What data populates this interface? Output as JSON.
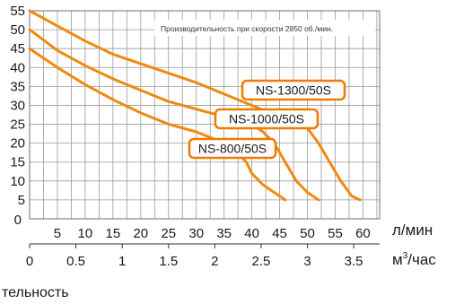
{
  "chart_data": {
    "type": "line",
    "annotation": "Производительность при скорости 2850 об./мин.",
    "y_ticks": [
      "5",
      "10",
      "15",
      "20",
      "25",
      "30",
      "35",
      "40",
      "45",
      "50",
      "55"
    ],
    "x_ticks": [
      "5",
      "10",
      "15",
      "20",
      "25",
      "30",
      "35",
      "40",
      "45",
      "50",
      "55",
      "60"
    ],
    "x2_ticks": [
      "0",
      "0.5",
      "1",
      "1.5",
      "2",
      "2.5",
      "3",
      "3.5"
    ],
    "x_unit": "л/мин",
    "x2_unit_base": "м",
    "x2_unit_sup": "3",
    "x2_unit_rest": "/час",
    "y_zero_label": "0",
    "ylim": [
      0,
      55
    ],
    "xlim": [
      0,
      63
    ],
    "grid": true,
    "colors": {
      "curve": "#ef8a10",
      "label_border": "#ef7a00",
      "grid": "#9a9a9a"
    },
    "series": [
      {
        "name": "NS-1300/50S",
        "points": [
          [
            0,
            55
          ],
          [
            5,
            51
          ],
          [
            10,
            47
          ],
          [
            15,
            43.5
          ],
          [
            20,
            41
          ],
          [
            25,
            38.5
          ],
          [
            30,
            36
          ],
          [
            35,
            33
          ],
          [
            40,
            30
          ],
          [
            45,
            27
          ],
          [
            50,
            24
          ],
          [
            52,
            20
          ],
          [
            54,
            15
          ],
          [
            56,
            10
          ],
          [
            58,
            6
          ],
          [
            59.5,
            5
          ]
        ]
      },
      {
        "name": "NS-1000/50S",
        "points": [
          [
            0,
            50
          ],
          [
            5,
            44.5
          ],
          [
            10,
            40.5
          ],
          [
            15,
            37
          ],
          [
            20,
            34
          ],
          [
            25,
            31
          ],
          [
            30,
            29
          ],
          [
            35,
            27
          ],
          [
            40,
            25
          ],
          [
            42,
            23
          ],
          [
            44,
            20
          ],
          [
            46,
            15
          ],
          [
            48,
            10
          ],
          [
            50,
            7
          ],
          [
            52,
            5
          ]
        ]
      },
      {
        "name": "NS-800/50S",
        "points": [
          [
            0,
            45
          ],
          [
            5,
            40
          ],
          [
            10,
            35.5
          ],
          [
            15,
            31.5
          ],
          [
            20,
            28
          ],
          [
            25,
            25
          ],
          [
            30,
            23
          ],
          [
            35,
            20
          ],
          [
            37,
            18
          ],
          [
            39,
            15
          ],
          [
            40,
            12
          ],
          [
            42,
            9
          ],
          [
            44,
            7
          ],
          [
            46,
            5
          ]
        ]
      }
    ]
  },
  "partial_text": "тельность"
}
